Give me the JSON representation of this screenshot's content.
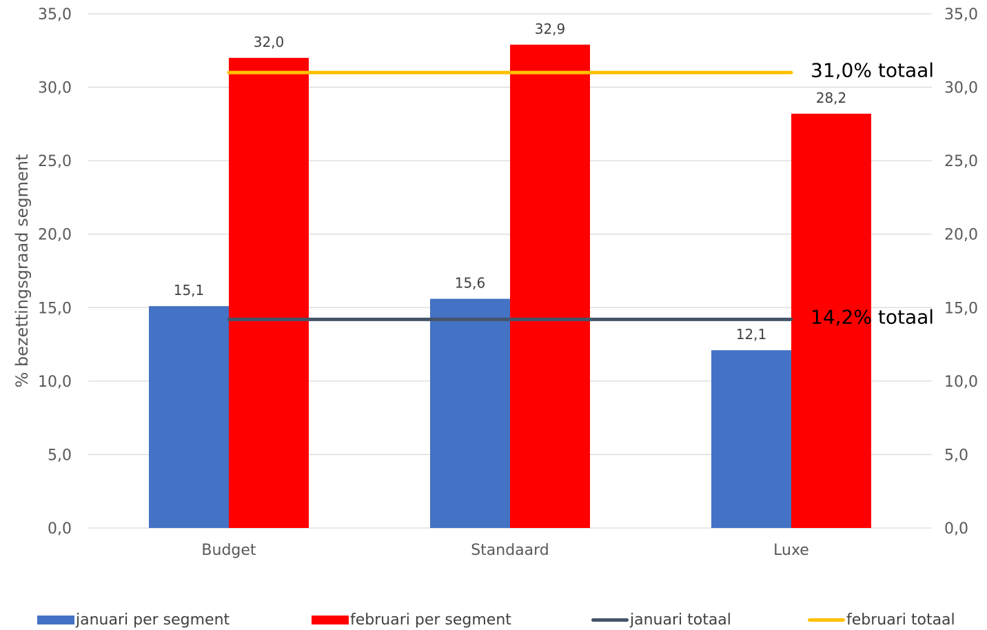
{
  "chart_data": {
    "type": "bar",
    "title": "",
    "xlabel": "",
    "ylabel": "% bezettingsgraad segment",
    "ylim": [
      0,
      35
    ],
    "yticks": [
      "0,0",
      "5,0",
      "10,0",
      "15,0",
      "20,0",
      "25,0",
      "30,0",
      "35,0"
    ],
    "ytick_values": [
      0,
      5,
      10,
      15,
      20,
      25,
      30,
      35
    ],
    "secondary_yticks": [
      "0,0",
      "5,0",
      "10,0",
      "15,0",
      "20,0",
      "25,0",
      "30,0",
      "35,0"
    ],
    "grid": true,
    "legend_position": "bottom",
    "categories": [
      "Budget",
      "Standaard",
      "Luxe"
    ],
    "series": [
      {
        "name": "januari per segment",
        "type": "bar",
        "color": "#4472C4",
        "values": [
          15.1,
          15.6,
          12.1
        ],
        "labels": [
          "15,1",
          "15,6",
          "12,1"
        ]
      },
      {
        "name": "februari per segment",
        "type": "bar",
        "color": "#FF0000",
        "values": [
          32.0,
          32.9,
          28.2
        ],
        "labels": [
          "32,0",
          "32,9",
          "28,2"
        ]
      }
    ],
    "lines": [
      {
        "name": "januari totaal",
        "type": "line",
        "color": "#44546A",
        "value": 14.2,
        "annotation": "14,2% totaal"
      },
      {
        "name": "februari totaal",
        "type": "line",
        "color": "#FFC000",
        "value": 31.0,
        "annotation": "31,0% totaal"
      }
    ]
  }
}
